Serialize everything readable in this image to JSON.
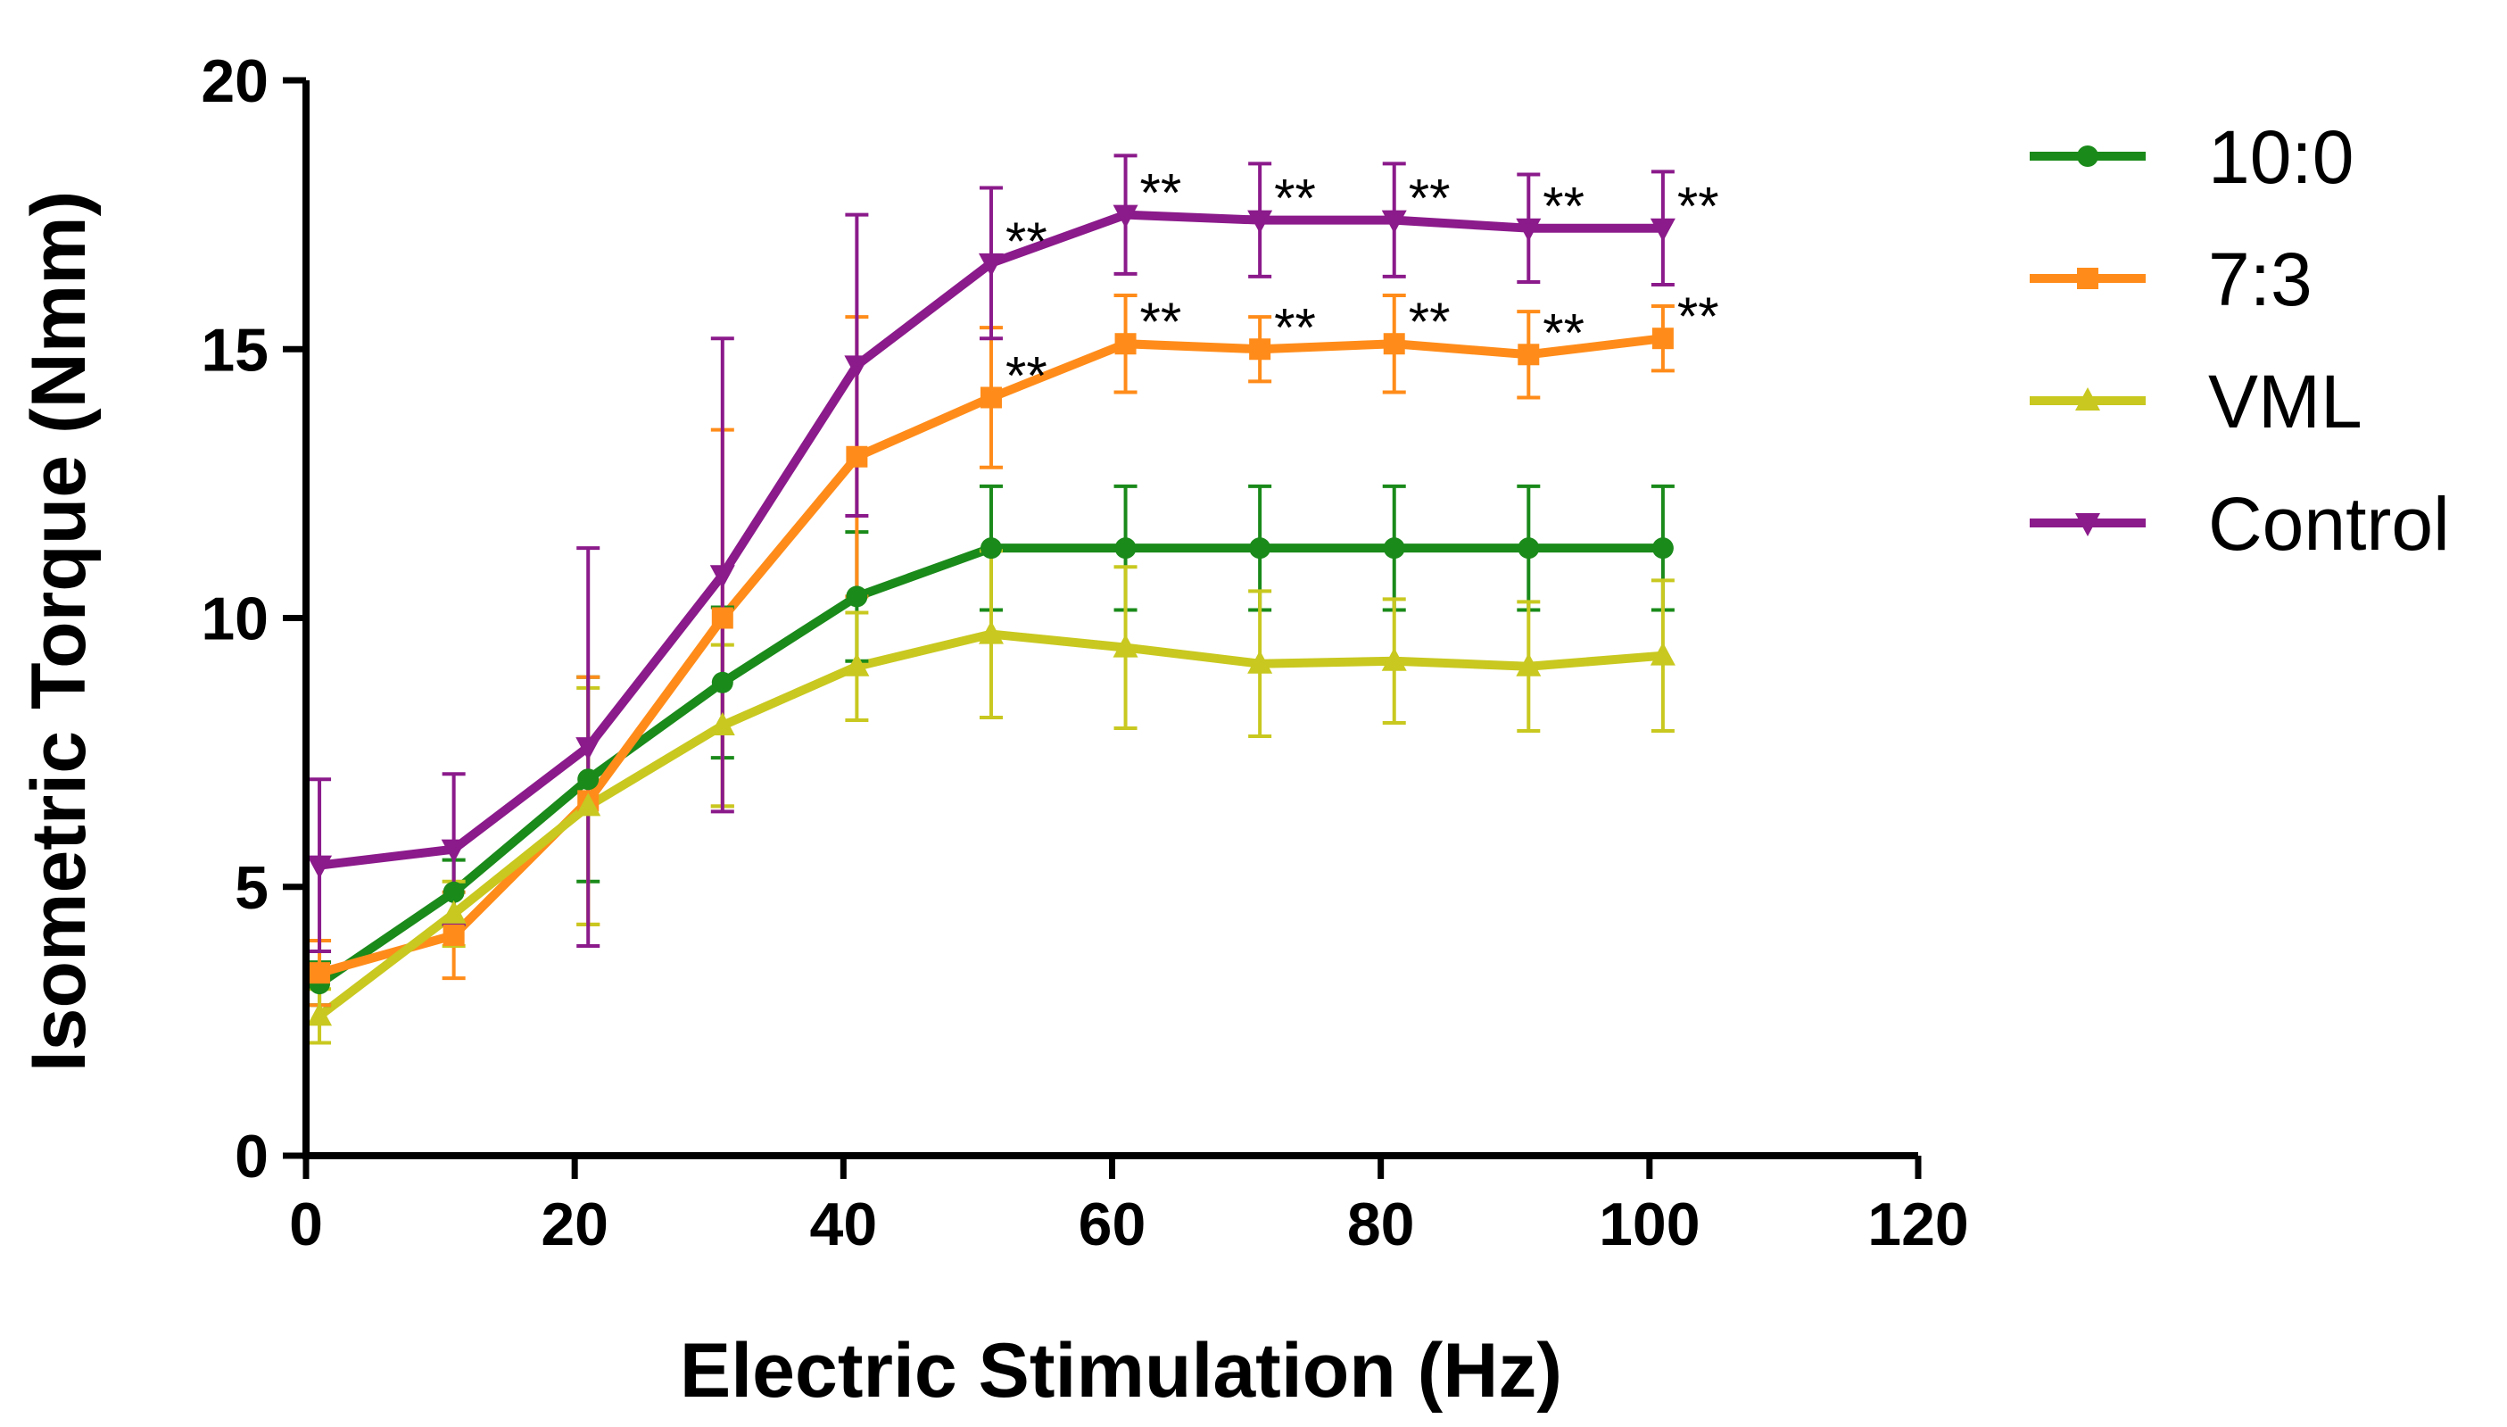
{
  "chart_data": {
    "type": "line",
    "title": "",
    "xlabel": "Electric Stimulation (Hz)",
    "ylabel": "Isometric Torque (Nmm)",
    "xlim": [
      0,
      120
    ],
    "ylim": [
      0,
      20
    ],
    "xticks": [
      0,
      20,
      40,
      60,
      80,
      100,
      120
    ],
    "yticks": [
      0,
      5,
      10,
      15,
      20
    ],
    "x": [
      1,
      11,
      21,
      31,
      41,
      51,
      61,
      71,
      81,
      91,
      101
    ],
    "legend_position": "right",
    "grid": false,
    "series": [
      {
        "name": "10:0",
        "color": "#1a8a1a",
        "marker": "circle",
        "values": [
          3.2,
          4.9,
          7.0,
          8.8,
          10.4,
          11.3,
          11.3,
          11.3,
          11.3,
          11.3,
          11.3
        ],
        "errors": [
          0.4,
          0.6,
          1.9,
          1.4,
          1.2,
          1.15,
          1.15,
          1.15,
          1.15,
          1.15,
          1.15
        ]
      },
      {
        "name": "7:3",
        "color": "#ff8c1a",
        "marker": "square",
        "values": [
          3.4,
          4.1,
          6.6,
          10.0,
          13.0,
          14.1,
          15.1,
          15.0,
          15.1,
          14.9,
          15.2
        ],
        "errors": [
          0.6,
          0.8,
          2.3,
          3.5,
          2.6,
          1.3,
          0.9,
          0.6,
          0.9,
          0.8,
          0.6
        ]
      },
      {
        "name": "VML",
        "color": "#c8c820",
        "marker": "triangle-up",
        "values": [
          2.6,
          4.5,
          6.5,
          8.0,
          9.1,
          9.7,
          9.45,
          9.15,
          9.2,
          9.1,
          9.3
        ],
        "errors": [
          0.5,
          0.6,
          2.2,
          1.5,
          1.0,
          1.55,
          1.5,
          1.35,
          1.15,
          1.2,
          1.4
        ]
      },
      {
        "name": "Control",
        "color": "#8b1a8b",
        "marker": "triangle-down",
        "values": [
          5.4,
          5.7,
          7.6,
          10.8,
          14.7,
          16.6,
          17.5,
          17.4,
          17.4,
          17.25,
          17.25
        ],
        "errors": [
          1.6,
          1.4,
          3.7,
          4.4,
          2.8,
          1.4,
          1.1,
          1.05,
          1.05,
          1.0,
          1.05
        ]
      }
    ],
    "annotations": [
      {
        "text": "**",
        "series": "Control",
        "x": 51
      },
      {
        "text": "**",
        "series": "Control",
        "x": 61
      },
      {
        "text": "**",
        "series": "Control",
        "x": 71
      },
      {
        "text": "**",
        "series": "Control",
        "x": 81
      },
      {
        "text": "**",
        "series": "Control",
        "x": 91
      },
      {
        "text": "**",
        "series": "Control",
        "x": 101
      },
      {
        "text": "**",
        "series": "7:3",
        "x": 51
      },
      {
        "text": "**",
        "series": "7:3",
        "x": 61
      },
      {
        "text": "**",
        "series": "7:3",
        "x": 71
      },
      {
        "text": "**",
        "series": "7:3",
        "x": 81
      },
      {
        "text": "**",
        "series": "7:3",
        "x": 91
      },
      {
        "text": "**",
        "series": "7:3",
        "x": 101
      }
    ]
  }
}
